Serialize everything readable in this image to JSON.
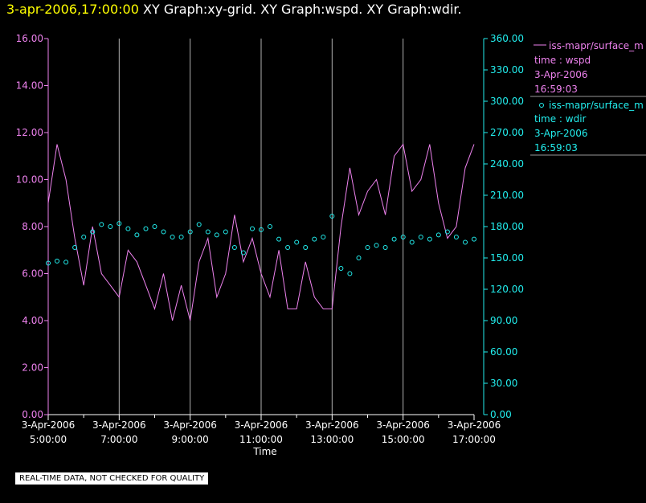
{
  "header": {
    "timestamp": "3-apr-2006,17:00:00",
    "graph_titles": "XY Graph:xy-grid.  XY Graph:wspd.  XY Graph:wdir."
  },
  "colors": {
    "wspd": "#ee82ee",
    "wdir": "#22eeee",
    "grid": "#b0b0b0",
    "timestamp": "#ffff00"
  },
  "legend": [
    {
      "series": "iss-mapr/surface_m",
      "var_label": "time : wspd",
      "date": "3-Apr-2006",
      "time": "16:59:03"
    },
    {
      "series": "iss-mapr/surface_m",
      "var_label": "time : wdir",
      "date": "3-Apr-2006",
      "time": "16:59:03"
    }
  ],
  "footer": {
    "qc_note": "REAL-TIME DATA, NOT CHECKED FOR QUALITY"
  },
  "chart_data": {
    "type": "line",
    "xlabel": "Time",
    "x_ticks": [
      {
        "date": "3-Apr-2006",
        "time": "5:00:00"
      },
      {
        "date": "3-Apr-2006",
        "time": "7:00:00"
      },
      {
        "date": "3-Apr-2006",
        "time": "9:00:00"
      },
      {
        "date": "3-Apr-2006",
        "time": "11:00:00"
      },
      {
        "date": "3-Apr-2006",
        "time": "13:00:00"
      },
      {
        "date": "3-Apr-2006",
        "time": "15:00:00"
      },
      {
        "date": "3-Apr-2006",
        "time": "17:00:00"
      }
    ],
    "xlim_hours": [
      5,
      17
    ],
    "y_left": {
      "ticks": [
        "0.00",
        "2.00",
        "4.00",
        "6.00",
        "8.00",
        "10.00",
        "12.00",
        "14.00",
        "16.00"
      ],
      "ylim": [
        0,
        16
      ]
    },
    "y_right": {
      "ticks": [
        "0.00",
        "30.00",
        "60.00",
        "90.00",
        "120.00",
        "150.00",
        "180.00",
        "210.00",
        "240.00",
        "270.00",
        "300.00",
        "330.00",
        "360.00"
      ],
      "ylim": [
        0,
        360
      ]
    },
    "grid": "vertical",
    "series": [
      {
        "name": "iss-mapr/surface_m (wspd)",
        "axis": "left",
        "style": "line",
        "x_hours": [
          5.0,
          5.25,
          5.5,
          5.75,
          6.0,
          6.25,
          6.5,
          6.75,
          7.0,
          7.25,
          7.5,
          7.75,
          8.0,
          8.25,
          8.5,
          8.75,
          9.0,
          9.25,
          9.5,
          9.75,
          10.0,
          10.25,
          10.5,
          10.75,
          11.0,
          11.25,
          11.5,
          11.75,
          12.0,
          12.25,
          12.5,
          12.75,
          13.0,
          13.25,
          13.5,
          13.75,
          14.0,
          14.25,
          14.5,
          14.75,
          15.0,
          15.25,
          15.5,
          15.75,
          16.0,
          16.25,
          16.5,
          16.75,
          17.0
        ],
        "values": [
          9.0,
          11.5,
          10.0,
          7.5,
          5.5,
          8.0,
          6.0,
          5.5,
          5.0,
          7.0,
          6.5,
          5.5,
          4.5,
          6.0,
          4.0,
          5.5,
          4.0,
          6.5,
          7.5,
          5.0,
          6.0,
          8.5,
          6.5,
          7.5,
          6.0,
          5.0,
          7.0,
          4.5,
          4.5,
          6.5,
          5.0,
          4.5,
          4.5,
          8.0,
          10.5,
          8.5,
          9.5,
          10.0,
          8.5,
          11.0,
          11.5,
          9.5,
          10.0,
          11.5,
          9.0,
          7.5,
          8.0,
          10.5,
          11.5
        ]
      },
      {
        "name": "iss-mapr/surface_m (wdir)",
        "axis": "right",
        "style": "points",
        "x_hours": [
          5.0,
          5.25,
          5.5,
          5.75,
          6.0,
          6.25,
          6.5,
          6.75,
          7.0,
          7.25,
          7.5,
          7.75,
          8.0,
          8.25,
          8.5,
          8.75,
          9.0,
          9.25,
          9.5,
          9.75,
          10.0,
          10.25,
          10.5,
          10.75,
          11.0,
          11.25,
          11.5,
          11.75,
          12.0,
          12.25,
          12.5,
          12.75,
          13.0,
          13.25,
          13.5,
          13.75,
          14.0,
          14.25,
          14.5,
          14.75,
          15.0,
          15.25,
          15.5,
          15.75,
          16.0,
          16.25,
          16.5,
          16.75,
          17.0
        ],
        "values": [
          145,
          147,
          146,
          160,
          170,
          175,
          182,
          180,
          183,
          178,
          172,
          178,
          180,
          175,
          170,
          170,
          175,
          182,
          175,
          172,
          175,
          160,
          155,
          178,
          177,
          180,
          168,
          160,
          165,
          160,
          168,
          170,
          190,
          140,
          135,
          150,
          160,
          162,
          160,
          168,
          170,
          165,
          170,
          168,
          172,
          175,
          170,
          165,
          168
        ]
      }
    ]
  }
}
